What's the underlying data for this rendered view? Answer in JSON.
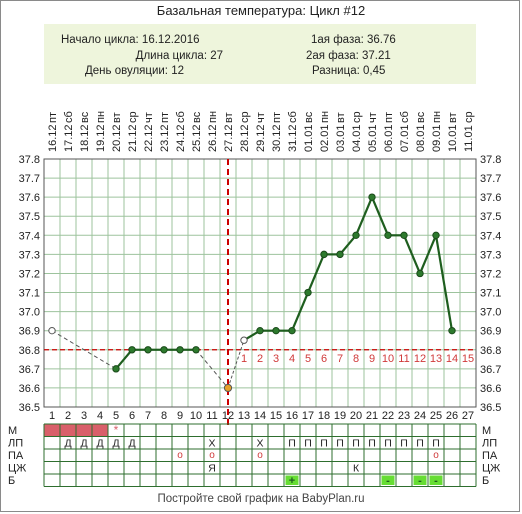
{
  "title": "Базальная температура: Цикл #12",
  "info": {
    "cycle_start": "Начало цикла: 16.12.2016",
    "cycle_length": "Длина цикла: 27",
    "ovulation_day": "День овуляции: 12",
    "phase1": "1ая фаза: 36.76",
    "phase2": "2ая фаза: 37.21",
    "difference": "Разница: 0,45"
  },
  "footer": "Постройте свой график на BabyPlan.ru",
  "colors": {
    "line": "#1e5e1e",
    "point": "#2d7a2d",
    "ovulation_line": "#cc0000",
    "coverline": "#cc0000",
    "luteal_numbers": "#d03a3a",
    "menstruation": "#d9606a",
    "green_marker": "#66dd33",
    "grid": "#9dc39d"
  },
  "chart_data": {
    "type": "line",
    "ylim": [
      36.5,
      37.8
    ],
    "yticks": [
      "36.5",
      "36.6",
      "36.7",
      "36.8",
      "36.9",
      "37.0",
      "37.1",
      "37.2",
      "37.3",
      "37.4",
      "37.5",
      "37.6",
      "37.7",
      "37.8"
    ],
    "days": [
      "1",
      "2",
      "3",
      "4",
      "5",
      "6",
      "7",
      "8",
      "9",
      "10",
      "11",
      "12",
      "13",
      "14",
      "15",
      "16",
      "17",
      "18",
      "19",
      "20",
      "21",
      "22",
      "23",
      "24",
      "25",
      "26",
      "27"
    ],
    "weekdays": [
      "пт",
      "сб",
      "вс",
      "пн",
      "вт",
      "ср",
      "чт",
      "пт",
      "сб",
      "вс",
      "пн",
      "вт",
      "ср",
      "чт",
      "пт",
      "сб",
      "вс",
      "пн",
      "вт",
      "ср",
      "чт",
      "пт",
      "сб",
      "вс",
      "пн",
      "вт",
      "ср"
    ],
    "dates": [
      "16.12",
      "17.12",
      "18.12",
      "19.12",
      "20.12",
      "21.12",
      "22.12",
      "23.12",
      "24.12",
      "25.12",
      "26.12",
      "27.12",
      "28.12",
      "29.12",
      "30.12",
      "31.12",
      "01.01",
      "02.01",
      "03.01",
      "04.01",
      "05.01",
      "06.01",
      "07.01",
      "08.01",
      "09.01",
      "10.01",
      "11.01"
    ],
    "temperatures": [
      36.9,
      null,
      null,
      null,
      36.7,
      36.8,
      36.8,
      36.8,
      36.8,
      36.8,
      null,
      36.6,
      36.85,
      36.9,
      36.9,
      36.9,
      37.1,
      37.3,
      37.3,
      37.4,
      37.6,
      37.4,
      37.4,
      37.2,
      37.4,
      36.9,
      null
    ],
    "open_points": [
      1,
      12,
      13
    ],
    "ovulation_day": 12,
    "coverline": 36.8,
    "luteal_numbers": [
      "1",
      "2",
      "3",
      "4",
      "5",
      "6",
      "7",
      "8",
      "9",
      "10",
      "11",
      "12",
      "13",
      "14",
      "15"
    ],
    "rows": [
      {
        "label": "М",
        "cells": [
          "red",
          "red",
          "red",
          "red",
          "*",
          "",
          "",
          "",
          "",
          "",
          "",
          "",
          "",
          "",
          "",
          "",
          "",
          "",
          "",
          "",
          "",
          "",
          "",
          "",
          "",
          "",
          ""
        ]
      },
      {
        "label": "ЛП",
        "cells": [
          "",
          "Д",
          "Д",
          "Д",
          "Д",
          "Д",
          "",
          "",
          "",
          "",
          "Х",
          "",
          "",
          "Х",
          "",
          "П",
          "П",
          "П",
          "П",
          "П",
          "П",
          "П",
          "П",
          "П",
          "П",
          "",
          ""
        ]
      },
      {
        "label": "ПА",
        "cells": [
          "",
          "",
          "",
          "",
          "",
          "",
          "",
          "",
          "о",
          "",
          "о",
          "",
          "",
          "о",
          "",
          "",
          "",
          "",
          "",
          "",
          "",
          "",
          "",
          "",
          "о",
          "",
          ""
        ]
      },
      {
        "label": "ЦЖ",
        "cells": [
          "",
          "",
          "",
          "",
          "",
          "",
          "",
          "",
          "",
          "",
          "Я",
          "",
          "",
          "",
          "",
          "",
          "",
          "",
          "",
          "К",
          "",
          "",
          "",
          "",
          "",
          "",
          ""
        ]
      },
      {
        "label": "Б",
        "cells": [
          "",
          "",
          "",
          "",
          "",
          "",
          "",
          "",
          "",
          "",
          "",
          "",
          "",
          "",
          "",
          "+",
          "",
          "",
          "",
          "",
          "",
          "-",
          "",
          "-",
          "-",
          "",
          ""
        ]
      }
    ]
  }
}
